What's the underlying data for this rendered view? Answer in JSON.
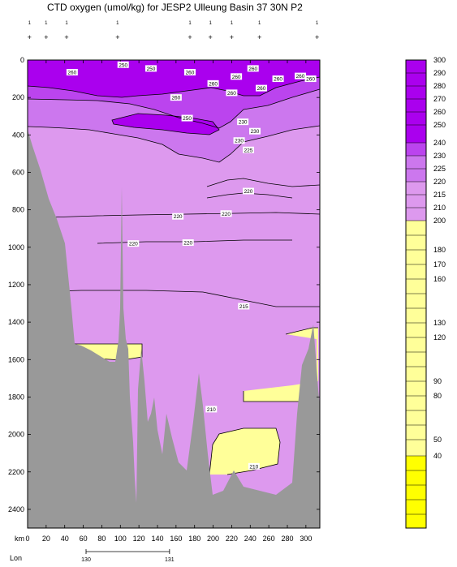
{
  "title": "CTD oxygen (umol/kg) for JESP2 Ulleung Basin 37 30N P2",
  "chart_data": {
    "type": "heatmap",
    "title": "CTD oxygen (umol/kg) for JESP2 Ulleung Basin 37 30N P2",
    "xlabel": "km",
    "x_secondary_label": "Lon",
    "xlim": [
      0,
      315
    ],
    "ylim": [
      0,
      2500
    ],
    "y_reversed": true,
    "x_ticks": [
      0,
      20,
      40,
      60,
      80,
      100,
      120,
      140,
      160,
      180,
      200,
      220,
      240,
      260,
      280,
      300
    ],
    "y_ticks": [
      0,
      200,
      400,
      600,
      800,
      1000,
      1200,
      1400,
      1600,
      1800,
      2000,
      2200,
      2400
    ],
    "lon_ticks": [
      {
        "km": 63,
        "label": "130"
      },
      {
        "km": 153,
        "label": "131"
      }
    ],
    "station_km": [
      2,
      20,
      42,
      97,
      175,
      197,
      220,
      250,
      312
    ],
    "station_label": "1",
    "colorbar": {
      "levels": [
        300,
        290,
        280,
        270,
        260,
        250,
        240,
        230,
        225,
        220,
        215,
        210,
        200,
        180,
        170,
        160,
        130,
        120,
        90,
        80,
        50,
        40
      ],
      "colors": {
        "300": "#aa00ee",
        "290": "#aa00ee",
        "280": "#aa00ee",
        "270": "#aa00ee",
        "260": "#aa00ee",
        "250": "#aa00ee",
        "240": "#bb44ee",
        "230": "#cc77ee",
        "225": "#dd99ee",
        "220": "#dd99ee",
        "215": "#dd99ee",
        "210": "#ffff99",
        "low": "#ffff00"
      }
    },
    "contour_labels": [
      {
        "x": 103,
        "y": 25,
        "text": "250"
      },
      {
        "x": 133,
        "y": 45,
        "text": "250"
      },
      {
        "x": 48,
        "y": 65,
        "text": "260"
      },
      {
        "x": 175,
        "y": 65,
        "text": "260"
      },
      {
        "x": 225,
        "y": 88,
        "text": "260"
      },
      {
        "x": 243,
        "y": 45,
        "text": "260"
      },
      {
        "x": 270,
        "y": 100,
        "text": "260"
      },
      {
        "x": 294,
        "y": 85,
        "text": "260"
      },
      {
        "x": 305,
        "y": 100,
        "text": "260"
      },
      {
        "x": 200,
        "y": 125,
        "text": "260"
      },
      {
        "x": 220,
        "y": 175,
        "text": "260"
      },
      {
        "x": 252,
        "y": 150,
        "text": "260"
      },
      {
        "x": 160,
        "y": 200,
        "text": "260"
      },
      {
        "x": 172,
        "y": 310,
        "text": "250"
      },
      {
        "x": 232,
        "y": 330,
        "text": "230"
      },
      {
        "x": 245,
        "y": 380,
        "text": "230"
      },
      {
        "x": 228,
        "y": 430,
        "text": "230"
      },
      {
        "x": 238,
        "y": 480,
        "text": "225"
      },
      {
        "x": 238,
        "y": 700,
        "text": "220"
      },
      {
        "x": 162,
        "y": 835,
        "text": "220"
      },
      {
        "x": 214,
        "y": 820,
        "text": "220"
      },
      {
        "x": 114,
        "y": 980,
        "text": "220"
      },
      {
        "x": 173,
        "y": 975,
        "text": "220"
      },
      {
        "x": 233,
        "y": 1315,
        "text": "215"
      },
      {
        "x": 198,
        "y": 1865,
        "text": "210"
      },
      {
        "x": 244,
        "y": 2170,
        "text": "210"
      }
    ]
  }
}
